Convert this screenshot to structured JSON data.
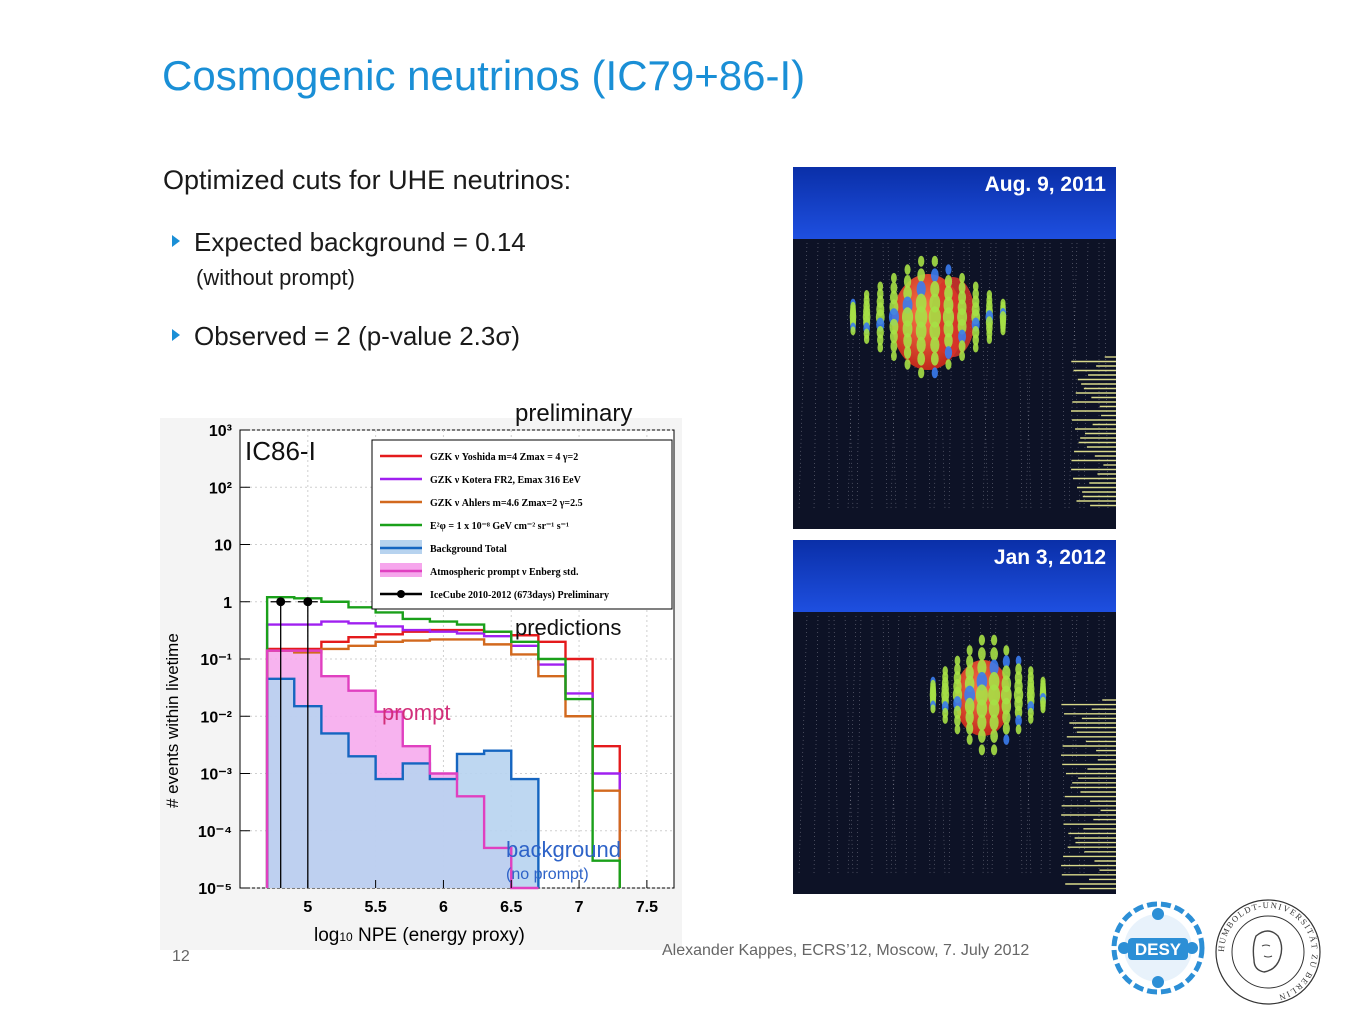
{
  "slide": {
    "title": "Cosmogenic neutrinos (IC79+86-I)",
    "intro": "Optimized cuts for UHE neutrinos:",
    "bullets": [
      {
        "text": "Expected background = 0.14",
        "sub": "(without prompt)"
      },
      {
        "text": "Observed = 2 (p-value 2.3σ)",
        "sub": ""
      }
    ],
    "page_number": "12",
    "footer": "Alexander Kappes, ECRS’12, Moscow, 7. July 2012"
  },
  "annotations": {
    "preliminary": "preliminary",
    "detector": "IC86-I",
    "predictions": "predictions",
    "prompt": "prompt",
    "background": "background",
    "background_sub": "(no prompt)"
  },
  "event_panels": [
    {
      "date": "Aug. 9, 2011"
    },
    {
      "date": "Jan 3, 2012"
    }
  ],
  "logos": [
    "DESY",
    "HUMBOLDT-UNIVERSITÄT ZU BERLIN"
  ],
  "chart_data": {
    "type": "line",
    "xlabel_prefix": "log",
    "xlabel_sub": "10",
    "xlabel_suffix": " NPE (energy proxy)",
    "ylabel": "# events within livetime",
    "xlim": [
      4.5,
      7.7
    ],
    "ylim_log10": [
      -5,
      3
    ],
    "yscale": "log",
    "x_ticks": [
      "5",
      "5.5",
      "6",
      "6.5",
      "7",
      "7.5"
    ],
    "x_tick_values": [
      5,
      5.5,
      6,
      6.5,
      7,
      7.5
    ],
    "y_ticks": [
      "10³",
      "10²",
      "10",
      "1",
      "10⁻¹",
      "10⁻²",
      "10⁻³",
      "10⁻⁴",
      "10⁻⁵"
    ],
    "y_tick_exponents": [
      3,
      2,
      1,
      0,
      -1,
      -2,
      -3,
      -4,
      -5
    ],
    "bin_edges": [
      4.7,
      4.9,
      5.1,
      5.3,
      5.5,
      5.7,
      5.9,
      6.1,
      6.3,
      6.5,
      6.7,
      6.9,
      7.1,
      7.3
    ],
    "series": [
      {
        "name": "GZK ν Yoshida m=4 Zmax = 4 γ=2",
        "color": "#e41a1c",
        "values": [
          0.15,
          0.15,
          0.2,
          0.24,
          0.27,
          0.3,
          0.32,
          0.32,
          0.3,
          0.26,
          0.2,
          0.1,
          0.003
        ]
      },
      {
        "name": "GZK ν Kotera FR2, Emax 316 EeV",
        "color": "#a020f0",
        "values": [
          0.4,
          0.4,
          0.45,
          0.42,
          0.37,
          0.32,
          0.3,
          0.28,
          0.25,
          0.17,
          0.08,
          0.025,
          0.001
        ]
      },
      {
        "name": "GZK ν Ahlers m=4.6 Zmax=2 γ=2.5",
        "color": "#d2691e",
        "values": [
          0.14,
          0.13,
          0.15,
          0.17,
          0.2,
          0.21,
          0.22,
          0.22,
          0.18,
          0.12,
          0.05,
          0.01,
          0.0005
        ]
      },
      {
        "name": "E²φ = 1 x 10⁻⁸ GeV cm⁻² sr⁻¹ s⁻¹",
        "color": "#1aa01a",
        "values": [
          1.2,
          1.15,
          1.0,
          0.8,
          0.65,
          0.5,
          0.45,
          0.4,
          0.3,
          0.2,
          0.1,
          0.02,
          3e-05
        ]
      },
      {
        "name": "Background Total",
        "color": "#1565c0",
        "values": [
          0.045,
          0.015,
          0.005,
          0.002,
          0.0008,
          0.0015,
          0.0008,
          0.0022,
          0.0025,
          0.0008
        ]
      },
      {
        "name": "Atmospheric prompt ν Enberg std.",
        "color": "#e040c0",
        "values": [
          0.14,
          0.14,
          0.05,
          0.028,
          0.012,
          0.003,
          0.001,
          0.0004,
          5e-05,
          1e-05
        ]
      }
    ],
    "data_points": {
      "name": "IceCube 2010-2012 (673days) Preliminary",
      "x": [
        4.8,
        5.0
      ],
      "y": [
        1,
        1
      ]
    }
  }
}
